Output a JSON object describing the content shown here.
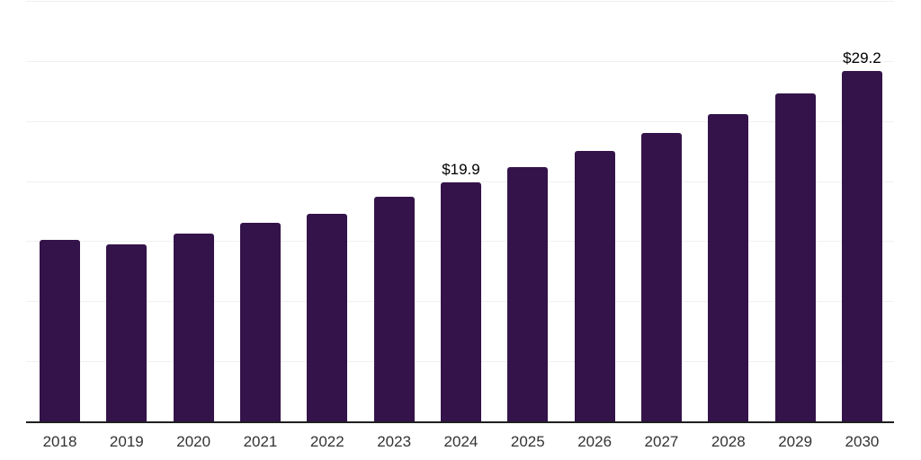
{
  "chart": {
    "background_color": "#ffffff",
    "bar_color": "#34134a",
    "grid_color": "#f0f0f0",
    "axis_color": "#1f1f1f",
    "tick_label_color": "#333333",
    "value_label_color": "#000000"
  },
  "chart_data": {
    "type": "bar",
    "title": "",
    "xlabel": "",
    "ylabel": "",
    "categories": [
      "2018",
      "2019",
      "2020",
      "2021",
      "2022",
      "2023",
      "2024",
      "2025",
      "2026",
      "2027",
      "2028",
      "2029",
      "2030"
    ],
    "values": [
      15.1,
      14.7,
      15.6,
      16.5,
      17.3,
      18.7,
      19.9,
      21.2,
      22.5,
      24.0,
      25.6,
      27.3,
      29.2
    ],
    "annotations": [
      {
        "category": "2024",
        "text": "$19.9"
      },
      {
        "category": "2030",
        "text": "$29.2"
      }
    ],
    "ylim": [
      0,
      35
    ],
    "grid_interval": 5,
    "grid": "horizontal-only",
    "y_axis_tick_labels": "none",
    "legend": "none",
    "bar_corner_radius": "rounded-top"
  }
}
